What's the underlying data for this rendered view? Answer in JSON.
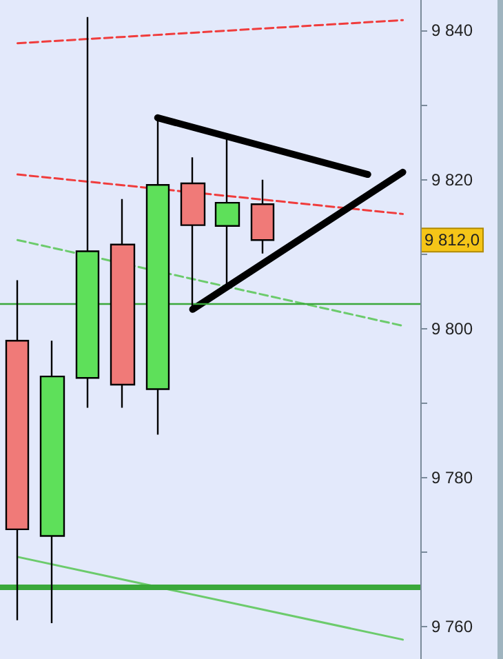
{
  "chart_data": {
    "type": "candlestick",
    "categories": [
      null,
      null,
      null,
      null,
      null,
      null,
      null,
      null,
      null,
      null,
      null,
      null
    ],
    "ohlc": [
      [
        9798.4,
        9806.5,
        9760.9,
        9773.1
      ],
      [
        9772.2,
        9798.4,
        9760.5,
        9793.6
      ],
      [
        9793.4,
        9841.8,
        9789.4,
        9810.4
      ],
      [
        9811.3,
        9817.4,
        9789.4,
        9792.5
      ],
      [
        9791.9,
        9828.7,
        9785.8,
        9819.3
      ],
      [
        9819.5,
        9823.0,
        9802.5,
        9813.9
      ],
      [
        9813.8,
        9825.6,
        9805.3,
        9816.9
      ],
      [
        9816.7,
        9820.0,
        9810.1,
        9811.9
      ],
      null,
      null,
      null,
      null
    ],
    "colors": [
      "#f07a78",
      "#5ee05a",
      "#5ee05a",
      "#f07a78",
      "#5ee05a",
      "#f07a78",
      "#5ee05a",
      "#f07a78",
      null,
      null,
      null,
      null
    ],
    "series": [
      {
        "type": "line",
        "color": "#f03c3c",
        "line_style": "dashed",
        "values": [
          9838.3,
          null,
          null,
          null,
          null,
          null,
          null,
          null,
          null,
          null,
          null,
          9841.4
        ]
      },
      {
        "type": "line",
        "color": "#f03c3c",
        "line_style": "dashed",
        "values": [
          9820.7,
          null,
          null,
          null,
          null,
          null,
          null,
          null,
          null,
          null,
          null,
          9815.4
        ]
      },
      {
        "type": "line",
        "color": "#6ccb6c",
        "line_style": "dashed",
        "values": [
          9811.9,
          null,
          null,
          null,
          null,
          null,
          null,
          null,
          null,
          null,
          null,
          9800.4
        ]
      },
      {
        "type": "line",
        "color": "#6ccb6c",
        "line_style": "solid",
        "values": [
          9769.4,
          null,
          null,
          null,
          null,
          null,
          null,
          null,
          null,
          null,
          null,
          9758.3
        ]
      },
      {
        "type": "line",
        "color": "#000000",
        "line_style": "solid",
        "values": [
          null,
          null,
          null,
          null,
          9828.3,
          null,
          null,
          null,
          null,
          null,
          9820.7,
          null
        ]
      },
      {
        "type": "line",
        "color": "#000000",
        "line_style": "solid",
        "values": [
          null,
          null,
          null,
          null,
          null,
          9802.6,
          null,
          null,
          null,
          null,
          null,
          9821.0
        ]
      }
    ],
    "ref_lines": [
      {
        "axis": "y",
        "value": 9803.3,
        "color": "#3aa83a"
      },
      {
        "axis": "y",
        "value": 9765.3,
        "color": "#3aa83a"
      }
    ],
    "annotations": [
      "9 812,0"
    ],
    "ylim": [
      9755.7,
      9844.1
    ],
    "yticks": [
      {
        "value": 9760,
        "label": "9 760"
      },
      {
        "value": 9770,
        "label": null
      },
      {
        "value": 9780,
        "label": "9 780"
      },
      {
        "value": 9790,
        "label": null
      },
      {
        "value": 9800,
        "label": "9 800"
      },
      {
        "value": 9810,
        "label": null
      },
      {
        "value": 9820,
        "label": "9 820"
      },
      {
        "value": 9830,
        "label": null
      },
      {
        "value": 9840,
        "label": "9 840"
      }
    ],
    "tick_labels": "y"
  }
}
